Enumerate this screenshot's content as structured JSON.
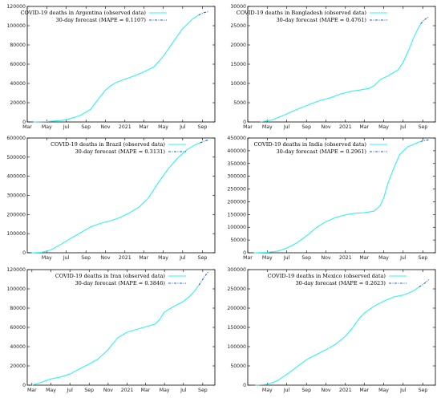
{
  "colors": {
    "observed": "#33f0f0",
    "forecast": "#1f5fd0"
  },
  "chart_data": [
    {
      "type": "line",
      "legend": {
        "observed": "COVID-19 deaths in Argentina (observed data)",
        "forecast": "30-day forecast (MAPE = 0.1107)",
        "position": "top-right"
      },
      "ylim": [
        0,
        120000
      ],
      "yticks": [
        0,
        20000,
        40000,
        60000,
        80000,
        100000,
        120000
      ],
      "xlim": [
        "2020-03-01",
        "2021-10-10"
      ],
      "xticks": [
        [
          "Mar",
          "2020-03-01"
        ],
        [
          "May",
          "2020-05-01"
        ],
        [
          "Jul",
          "2020-07-01"
        ],
        [
          "Sep",
          "2020-09-01"
        ],
        [
          "Nov",
          "2020-11-01"
        ],
        [
          "2021",
          "2021-01-01"
        ],
        [
          "Mar",
          "2021-03-01"
        ],
        [
          "May",
          "2021-05-01"
        ],
        [
          "Jul",
          "2021-07-01"
        ],
        [
          "Sep",
          "2021-09-01"
        ]
      ],
      "observed": [
        [
          "2020-03-20",
          0
        ],
        [
          "2020-05-01",
          500
        ],
        [
          "2020-06-15",
          1500
        ],
        [
          "2020-07-15",
          3500
        ],
        [
          "2020-08-15",
          7000
        ],
        [
          "2020-09-15",
          13000
        ],
        [
          "2020-10-01",
          20000
        ],
        [
          "2020-10-15",
          26000
        ],
        [
          "2020-11-01",
          33000
        ],
        [
          "2020-11-15",
          37000
        ],
        [
          "2020-12-01",
          40500
        ],
        [
          "2021-01-01",
          44500
        ],
        [
          "2021-02-01",
          48000
        ],
        [
          "2021-03-01",
          52000
        ],
        [
          "2021-04-01",
          57000
        ],
        [
          "2021-05-01",
          68000
        ],
        [
          "2021-06-01",
          83000
        ],
        [
          "2021-07-01",
          97000
        ],
        [
          "2021-07-20",
          103000
        ],
        [
          "2021-08-01",
          107000
        ],
        [
          "2021-08-20",
          111000
        ]
      ],
      "forecast": [
        [
          "2021-08-20",
          111000
        ],
        [
          "2021-09-05",
          113500
        ],
        [
          "2021-09-19",
          114500
        ]
      ]
    },
    {
      "type": "line",
      "legend": {
        "observed": "COVID-19 deaths in Bangladesh (observed data)",
        "forecast": "30-day forecast (MAPE = 0.4761)",
        "position": "top-right"
      },
      "ylim": [
        0,
        30000
      ],
      "yticks": [
        0,
        5000,
        10000,
        15000,
        20000,
        25000,
        30000
      ],
      "xlim": [
        "2020-03-01",
        "2021-10-10"
      ],
      "xticks": [
        [
          "Mar",
          "2020-03-01"
        ],
        [
          "May",
          "2020-05-01"
        ],
        [
          "Jul",
          "2020-07-01"
        ],
        [
          "Sep",
          "2020-09-01"
        ],
        [
          "Nov",
          "2020-11-01"
        ],
        [
          "2021",
          "2021-01-01"
        ],
        [
          "Mar",
          "2021-03-01"
        ],
        [
          "May",
          "2021-05-01"
        ],
        [
          "Jul",
          "2021-07-01"
        ],
        [
          "Sep",
          "2021-09-01"
        ]
      ],
      "observed": [
        [
          "2020-04-10",
          0
        ],
        [
          "2020-05-15",
          500
        ],
        [
          "2020-06-15",
          1500
        ],
        [
          "2020-07-15",
          2600
        ],
        [
          "2020-08-15",
          3700
        ],
        [
          "2020-09-15",
          4700
        ],
        [
          "2020-10-15",
          5600
        ],
        [
          "2020-11-15",
          6300
        ],
        [
          "2020-12-15",
          7200
        ],
        [
          "2021-01-15",
          7900
        ],
        [
          "2021-02-15",
          8300
        ],
        [
          "2021-03-15",
          8700
        ],
        [
          "2021-04-01",
          9400
        ],
        [
          "2021-04-20",
          11000
        ],
        [
          "2021-05-15",
          12000
        ],
        [
          "2021-06-15",
          13500
        ],
        [
          "2021-07-01",
          15500
        ],
        [
          "2021-07-20",
          19000
        ],
        [
          "2021-08-01",
          21500
        ],
        [
          "2021-08-15",
          24000
        ],
        [
          "2021-08-25",
          25500
        ]
      ],
      "forecast": [
        [
          "2021-08-25",
          25500
        ],
        [
          "2021-09-05",
          26500
        ],
        [
          "2021-09-19",
          27300
        ]
      ]
    },
    {
      "type": "line",
      "legend": {
        "observed": "COVID-19 deaths in Brazil (observed data)",
        "forecast": "30-day forecast (MAPE = 0.3131)",
        "position": "top-left"
      },
      "ylim": [
        0,
        600000
      ],
      "yticks": [
        0,
        100000,
        200000,
        300000,
        400000,
        500000,
        600000
      ],
      "xlim": [
        "2020-03-01",
        "2021-10-10"
      ],
      "xticks": [
        [
          "May",
          "2020-05-01"
        ],
        [
          "Jul",
          "2020-07-01"
        ],
        [
          "Sep",
          "2020-09-01"
        ],
        [
          "Nov",
          "2020-11-01"
        ],
        [
          "2021",
          "2021-01-01"
        ],
        [
          "Mar",
          "2021-03-01"
        ],
        [
          "May",
          "2021-05-01"
        ],
        [
          "Jul",
          "2021-07-01"
        ],
        [
          "Sep",
          "2021-09-01"
        ]
      ],
      "observed": [
        [
          "2020-03-15",
          0
        ],
        [
          "2020-04-15",
          2000
        ],
        [
          "2020-05-15",
          15000
        ],
        [
          "2020-06-15",
          45000
        ],
        [
          "2020-07-15",
          75000
        ],
        [
          "2020-08-15",
          105000
        ],
        [
          "2020-09-15",
          135000
        ],
        [
          "2020-10-15",
          153000
        ],
        [
          "2020-11-15",
          166000
        ],
        [
          "2020-12-15",
          183000
        ],
        [
          "2021-01-15",
          208000
        ],
        [
          "2021-02-15",
          240000
        ],
        [
          "2021-03-15",
          285000
        ],
        [
          "2021-04-15",
          365000
        ],
        [
          "2021-05-15",
          435000
        ],
        [
          "2021-06-15",
          495000
        ],
        [
          "2021-07-15",
          540000
        ],
        [
          "2021-08-10",
          565000
        ],
        [
          "2021-08-25",
          575000
        ]
      ],
      "forecast": [
        [
          "2021-08-25",
          575000
        ],
        [
          "2021-09-05",
          583000
        ],
        [
          "2021-09-19",
          590000
        ]
      ]
    },
    {
      "type": "line",
      "legend": {
        "observed": "COVID-19 deaths in India (observed data)",
        "forecast": "30-day forecast (MAPE = 0.2961)",
        "position": "top-right"
      },
      "ylim": [
        0,
        450000
      ],
      "yticks": [
        0,
        50000,
        100000,
        150000,
        200000,
        250000,
        300000,
        350000,
        400000,
        450000
      ],
      "xlim": [
        "2020-03-01",
        "2021-10-10"
      ],
      "xticks": [
        [
          "Mar",
          "2020-03-01"
        ],
        [
          "May",
          "2020-05-01"
        ],
        [
          "Jul",
          "2020-07-01"
        ],
        [
          "Sep",
          "2020-09-01"
        ],
        [
          "Nov",
          "2020-11-01"
        ],
        [
          "2021",
          "2021-01-01"
        ],
        [
          "Mar",
          "2021-03-01"
        ],
        [
          "May",
          "2021-05-01"
        ],
        [
          "Jul",
          "2021-07-01"
        ],
        [
          "Sep",
          "2021-09-01"
        ]
      ],
      "observed": [
        [
          "2020-03-20",
          0
        ],
        [
          "2020-05-01",
          1500
        ],
        [
          "2020-06-01",
          6000
        ],
        [
          "2020-07-01",
          18000
        ],
        [
          "2020-08-01",
          38000
        ],
        [
          "2020-09-01",
          66000
        ],
        [
          "2020-10-01",
          98000
        ],
        [
          "2020-11-01",
          122000
        ],
        [
          "2020-12-01",
          138000
        ],
        [
          "2021-01-01",
          149000
        ],
        [
          "2021-02-01",
          155000
        ],
        [
          "2021-03-01",
          157000
        ],
        [
          "2021-04-01",
          163000
        ],
        [
          "2021-04-20",
          185000
        ],
        [
          "2021-05-01",
          215000
        ],
        [
          "2021-05-15",
          275000
        ],
        [
          "2021-06-01",
          330000
        ],
        [
          "2021-06-20",
          385000
        ],
        [
          "2021-07-15",
          415000
        ],
        [
          "2021-08-15",
          432000
        ],
        [
          "2021-08-25",
          436000
        ]
      ],
      "forecast": [
        [
          "2021-08-25",
          436000
        ],
        [
          "2021-09-05",
          440000
        ],
        [
          "2021-09-19",
          443000
        ]
      ]
    },
    {
      "type": "line",
      "legend": {
        "observed": "COVID-19 deaths in Iran (observed data)",
        "forecast": "30-day forecast (MAPE = 0.3846)",
        "position": "top-left"
      },
      "ylim": [
        0,
        120000
      ],
      "yticks": [
        0,
        20000,
        40000,
        60000,
        80000,
        100000,
        120000
      ],
      "xlim": [
        "2020-02-15",
        "2021-10-10"
      ],
      "xticks": [
        [
          "Mar",
          "2020-03-01"
        ],
        [
          "May",
          "2020-05-01"
        ],
        [
          "Jul",
          "2020-07-01"
        ],
        [
          "Sep",
          "2020-09-01"
        ],
        [
          "Nov",
          "2020-11-01"
        ],
        [
          "2021",
          "2021-01-01"
        ],
        [
          "Mar",
          "2021-03-01"
        ],
        [
          "May",
          "2021-05-01"
        ],
        [
          "Jul",
          "2021-07-01"
        ],
        [
          "Sep",
          "2021-09-01"
        ]
      ],
      "observed": [
        [
          "2020-03-01",
          0
        ],
        [
          "2020-04-01",
          3000
        ],
        [
          "2020-05-01",
          6500
        ],
        [
          "2020-06-01",
          8500
        ],
        [
          "2020-07-01",
          11500
        ],
        [
          "2020-08-01",
          17000
        ],
        [
          "2020-09-01",
          22000
        ],
        [
          "2020-10-01",
          27500
        ],
        [
          "2020-11-01",
          37000
        ],
        [
          "2020-12-01",
          49000
        ],
        [
          "2021-01-01",
          55000
        ],
        [
          "2021-02-01",
          58000
        ],
        [
          "2021-03-01",
          60500
        ],
        [
          "2021-04-01",
          63500
        ],
        [
          "2021-04-15",
          68000
        ],
        [
          "2021-05-01",
          76000
        ],
        [
          "2021-06-01",
          82000
        ],
        [
          "2021-07-01",
          87000
        ],
        [
          "2021-07-20",
          92000
        ],
        [
          "2021-08-01",
          96000
        ],
        [
          "2021-08-20",
          104000
        ]
      ],
      "forecast": [
        [
          "2021-08-20",
          104000
        ],
        [
          "2021-09-05",
          112000
        ],
        [
          "2021-09-19",
          118000
        ]
      ]
    },
    {
      "type": "line",
      "legend": {
        "observed": "COVID-19 deaths in Mexico (observed data)",
        "forecast": "30-day forecast (MAPE = 0.2623)",
        "position": "top-left"
      },
      "ylim": [
        0,
        300000
      ],
      "yticks": [
        0,
        50000,
        100000,
        150000,
        200000,
        250000,
        300000
      ],
      "xlim": [
        "2020-03-01",
        "2021-10-10"
      ],
      "xticks": [
        [
          "May",
          "2020-05-01"
        ],
        [
          "Jul",
          "2020-07-01"
        ],
        [
          "Sep",
          "2020-09-01"
        ],
        [
          "Nov",
          "2020-11-01"
        ],
        [
          "2021",
          "2021-01-01"
        ],
        [
          "Mar",
          "2021-03-01"
        ],
        [
          "May",
          "2021-05-01"
        ],
        [
          "Jul",
          "2021-07-01"
        ],
        [
          "Sep",
          "2021-09-01"
        ]
      ],
      "observed": [
        [
          "2020-03-25",
          0
        ],
        [
          "2020-05-01",
          2000
        ],
        [
          "2020-06-01",
          11000
        ],
        [
          "2020-07-01",
          28000
        ],
        [
          "2020-08-01",
          47000
        ],
        [
          "2020-09-01",
          66000
        ],
        [
          "2020-10-01",
          79000
        ],
        [
          "2020-11-01",
          92000
        ],
        [
          "2020-12-01",
          106000
        ],
        [
          "2021-01-01",
          127000
        ],
        [
          "2021-01-20",
          145000
        ],
        [
          "2021-02-15",
          175000
        ],
        [
          "2021-03-01",
          187000
        ],
        [
          "2021-04-01",
          205000
        ],
        [
          "2021-05-01",
          218000
        ],
        [
          "2021-06-01",
          229000
        ],
        [
          "2021-07-01",
          234000
        ],
        [
          "2021-08-01",
          244000
        ],
        [
          "2021-08-20",
          255000
        ]
      ],
      "forecast": [
        [
          "2021-08-20",
          255000
        ],
        [
          "2021-09-05",
          264000
        ],
        [
          "2021-09-19",
          274000
        ]
      ]
    }
  ]
}
